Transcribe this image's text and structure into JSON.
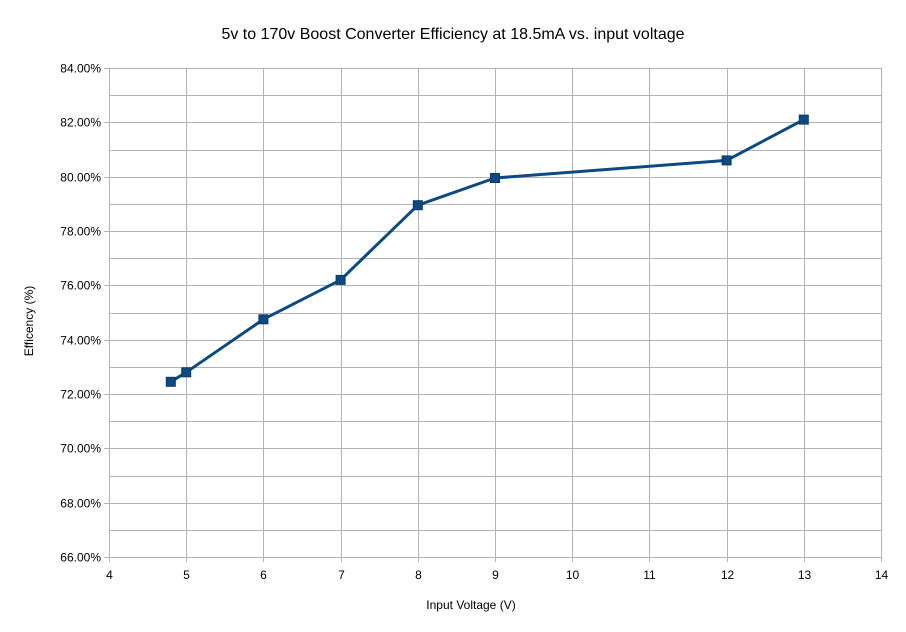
{
  "chart_data": {
    "type": "line",
    "title": "5v to 170v Boost Converter Efficiency at 18.5mA vs. input voltage",
    "xlabel": "Input Voltage (V)",
    "ylabel": "Efficency (%)",
    "xlim": [
      4,
      14
    ],
    "ylim": [
      66,
      84
    ],
    "x_ticks": [
      4,
      5,
      6,
      7,
      8,
      9,
      10,
      11,
      12,
      13,
      14
    ],
    "x_tick_labels": [
      "4",
      "5",
      "6",
      "7",
      "8",
      "9",
      "10",
      "11",
      "12",
      "13",
      "14"
    ],
    "y_ticks": [
      66,
      68,
      70,
      72,
      74,
      76,
      78,
      80,
      82,
      84
    ],
    "y_tick_labels": [
      "66.00%",
      "68.00%",
      "70.00%",
      "72.00%",
      "74.00%",
      "76.00%",
      "78.00%",
      "80.00%",
      "82.00%",
      "84.00%"
    ],
    "grid": true,
    "legend": "none",
    "series": [
      {
        "color": "#0d4a82",
        "marker": "square",
        "points": [
          {
            "x": 4.8,
            "y": 72.45
          },
          {
            "x": 5,
            "y": 72.8
          },
          {
            "x": 6,
            "y": 74.75
          },
          {
            "x": 7,
            "y": 76.2
          },
          {
            "x": 8,
            "y": 78.95
          },
          {
            "x": 9,
            "y": 79.95
          },
          {
            "x": 12,
            "y": 80.6
          },
          {
            "x": 13,
            "y": 82.1
          }
        ]
      }
    ]
  }
}
